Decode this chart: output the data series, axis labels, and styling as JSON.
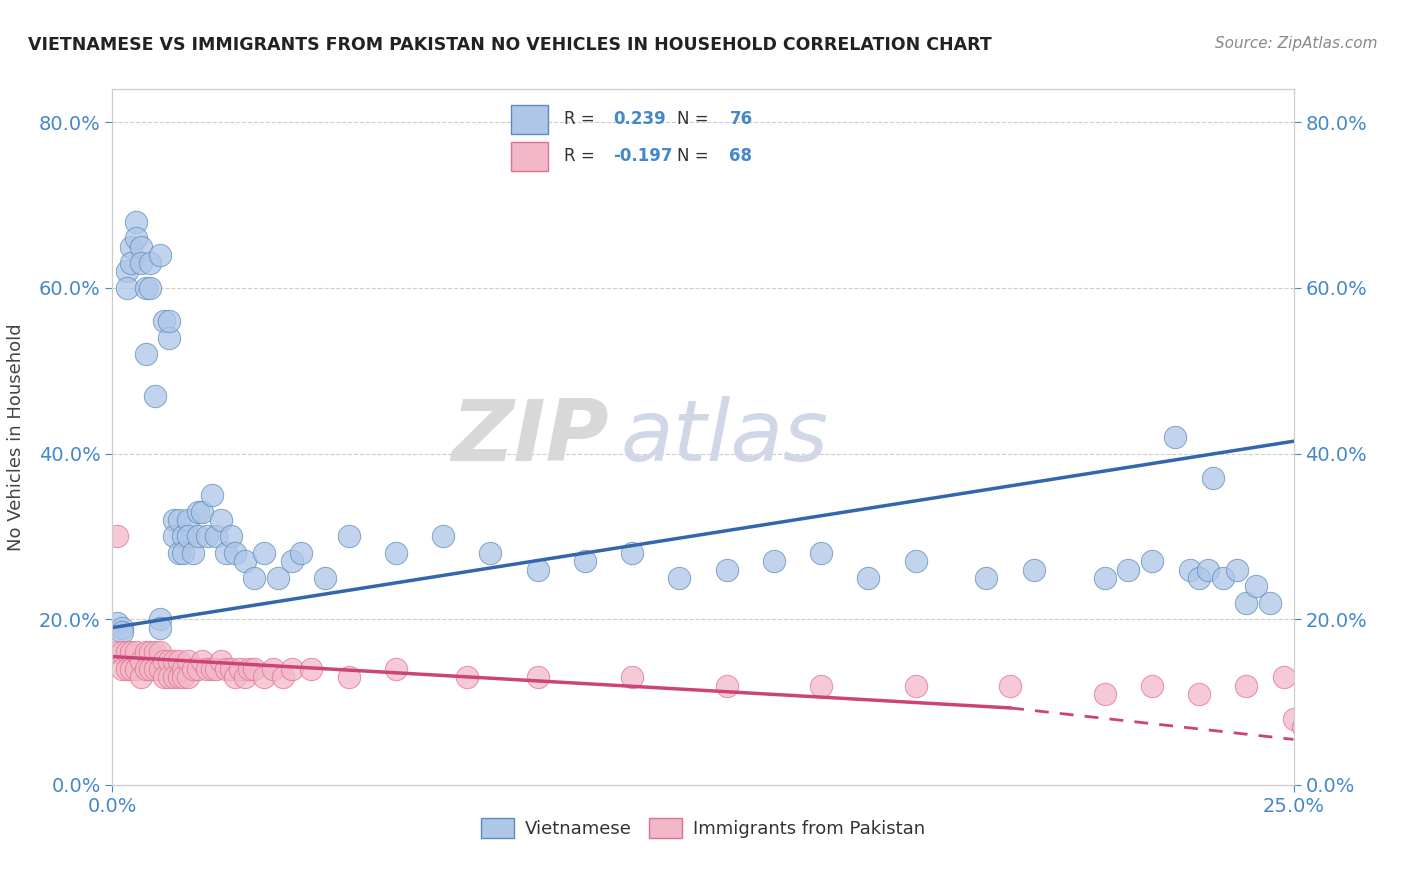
{
  "title": "VIETNAMESE VS IMMIGRANTS FROM PAKISTAN NO VEHICLES IN HOUSEHOLD CORRELATION CHART",
  "source": "Source: ZipAtlas.com",
  "ylabel": "No Vehicles in Household",
  "xmin": 0.0,
  "xmax": 0.25,
  "ymin": 0.0,
  "ymax": 0.84,
  "blue_R": 0.239,
  "blue_N": 76,
  "pink_R": -0.197,
  "pink_N": 68,
  "blue_color": "#aec6e8",
  "pink_color": "#f2b8c8",
  "blue_edge": "#5b8db8",
  "pink_edge": "#e07090",
  "blue_line": "#3366aa",
  "pink_line": "#cc4477",
  "watermark_zip": "ZIP",
  "watermark_atlas": "atlas",
  "legend_label_blue": "Vietnamese",
  "legend_label_pink": "Immigrants from Pakistan",
  "blue_trend_y0": 0.19,
  "blue_trend_y1": 0.415,
  "pink_trend_y0": 0.155,
  "pink_trend_y1": 0.055,
  "blue_x": [
    0.001,
    0.002,
    0.002,
    0.003,
    0.003,
    0.004,
    0.004,
    0.005,
    0.005,
    0.006,
    0.006,
    0.007,
    0.007,
    0.008,
    0.008,
    0.009,
    0.01,
    0.01,
    0.01,
    0.011,
    0.012,
    0.012,
    0.013,
    0.013,
    0.014,
    0.014,
    0.015,
    0.015,
    0.016,
    0.016,
    0.017,
    0.018,
    0.018,
    0.019,
    0.02,
    0.021,
    0.022,
    0.023,
    0.024,
    0.025,
    0.026,
    0.028,
    0.03,
    0.032,
    0.035,
    0.038,
    0.04,
    0.045,
    0.05,
    0.06,
    0.07,
    0.08,
    0.09,
    0.1,
    0.11,
    0.12,
    0.13,
    0.14,
    0.15,
    0.16,
    0.17,
    0.185,
    0.195,
    0.21,
    0.215,
    0.22,
    0.225,
    0.228,
    0.23,
    0.232,
    0.233,
    0.235,
    0.238,
    0.24,
    0.242,
    0.245
  ],
  "blue_y": [
    0.195,
    0.19,
    0.185,
    0.62,
    0.6,
    0.65,
    0.63,
    0.68,
    0.66,
    0.65,
    0.63,
    0.6,
    0.52,
    0.63,
    0.6,
    0.47,
    0.2,
    0.19,
    0.64,
    0.56,
    0.54,
    0.56,
    0.32,
    0.3,
    0.28,
    0.32,
    0.3,
    0.28,
    0.32,
    0.3,
    0.28,
    0.33,
    0.3,
    0.33,
    0.3,
    0.35,
    0.3,
    0.32,
    0.28,
    0.3,
    0.28,
    0.27,
    0.25,
    0.28,
    0.25,
    0.27,
    0.28,
    0.25,
    0.3,
    0.28,
    0.3,
    0.28,
    0.26,
    0.27,
    0.28,
    0.25,
    0.26,
    0.27,
    0.28,
    0.25,
    0.27,
    0.25,
    0.26,
    0.25,
    0.26,
    0.27,
    0.42,
    0.26,
    0.25,
    0.26,
    0.37,
    0.25,
    0.26,
    0.22,
    0.24,
    0.22
  ],
  "pink_x": [
    0.001,
    0.001,
    0.002,
    0.002,
    0.003,
    0.003,
    0.004,
    0.004,
    0.005,
    0.005,
    0.006,
    0.006,
    0.007,
    0.007,
    0.008,
    0.008,
    0.009,
    0.009,
    0.01,
    0.01,
    0.011,
    0.011,
    0.012,
    0.012,
    0.013,
    0.013,
    0.014,
    0.014,
    0.015,
    0.015,
    0.016,
    0.016,
    0.017,
    0.018,
    0.019,
    0.02,
    0.021,
    0.022,
    0.023,
    0.024,
    0.025,
    0.026,
    0.027,
    0.028,
    0.029,
    0.03,
    0.032,
    0.034,
    0.036,
    0.038,
    0.042,
    0.05,
    0.06,
    0.075,
    0.09,
    0.11,
    0.13,
    0.15,
    0.17,
    0.19,
    0.21,
    0.22,
    0.23,
    0.24,
    0.248,
    0.25,
    0.252,
    0.255
  ],
  "pink_y": [
    0.3,
    0.16,
    0.16,
    0.14,
    0.16,
    0.14,
    0.16,
    0.14,
    0.16,
    0.14,
    0.15,
    0.13,
    0.16,
    0.14,
    0.16,
    0.14,
    0.16,
    0.14,
    0.16,
    0.14,
    0.15,
    0.13,
    0.15,
    0.13,
    0.15,
    0.13,
    0.15,
    0.13,
    0.14,
    0.13,
    0.15,
    0.13,
    0.14,
    0.14,
    0.15,
    0.14,
    0.14,
    0.14,
    0.15,
    0.14,
    0.14,
    0.13,
    0.14,
    0.13,
    0.14,
    0.14,
    0.13,
    0.14,
    0.13,
    0.14,
    0.14,
    0.13,
    0.14,
    0.13,
    0.13,
    0.13,
    0.12,
    0.12,
    0.12,
    0.12,
    0.11,
    0.12,
    0.11,
    0.12,
    0.13,
    0.08,
    0.07,
    0.08
  ]
}
